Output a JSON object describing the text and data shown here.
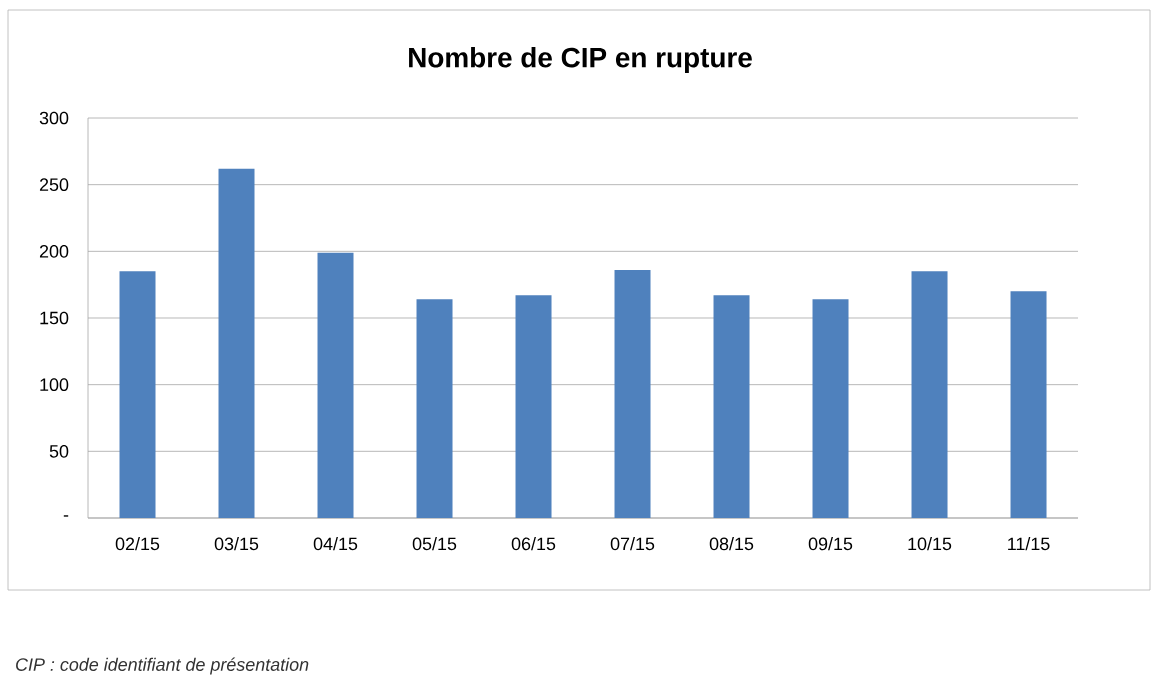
{
  "chart_data": {
    "type": "bar",
    "title": "Nombre de CIP en rupture",
    "categories": [
      "02/15",
      "03/15",
      "04/15",
      "05/15",
      "06/15",
      "07/15",
      "08/15",
      "09/15",
      "10/15",
      "11/15"
    ],
    "values": [
      185,
      262,
      199,
      164,
      167,
      186,
      167,
      164,
      185,
      170
    ],
    "color": "#4f81bd",
    "ylim": [
      0,
      300
    ],
    "yticks": [
      {
        "value": 0,
        "label": "-"
      },
      50,
      100,
      150,
      200,
      250,
      300
    ],
    "grid": "y",
    "annotations": [
      "CIP : code identifiant de présentation"
    ]
  }
}
